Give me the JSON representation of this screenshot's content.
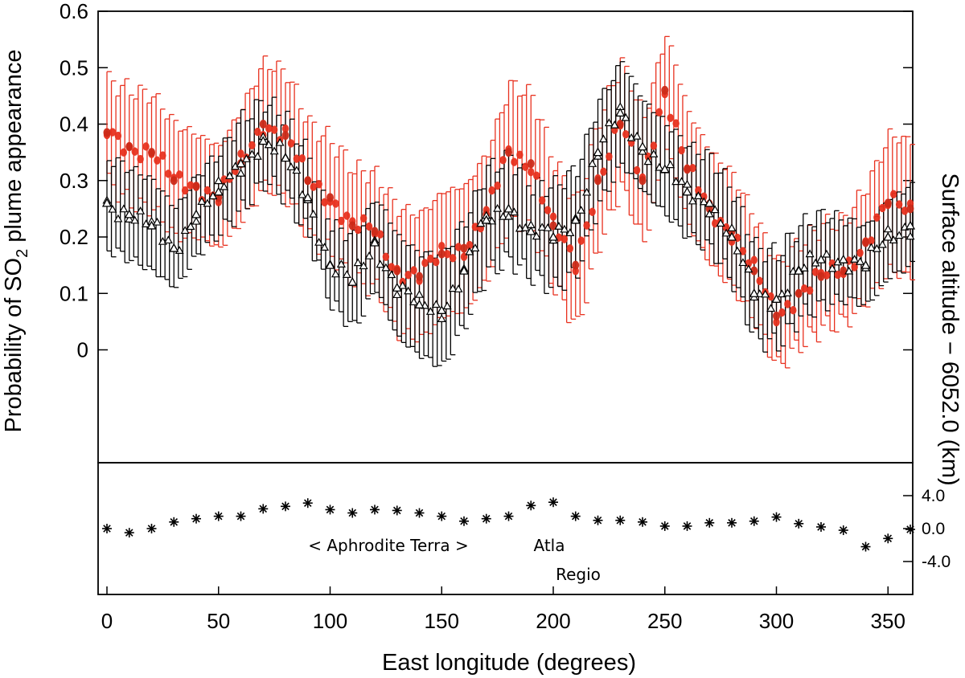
{
  "chart_data": [
    {
      "type": "scatter",
      "panel": "top",
      "ylabel_parts": [
        "Probability of SO",
        "2",
        " plume appearance"
      ],
      "ylim": [
        -0.2,
        0.6
      ],
      "yticks": [
        0,
        0.1,
        0.2,
        0.3,
        0.4,
        0.5,
        0.6
      ],
      "ytick_labels": [
        "0",
        "0.1",
        "0.2",
        "0.3",
        "0.4",
        "0.5",
        "0.6"
      ],
      "xlim": [
        0,
        360
      ],
      "series": [
        {
          "name": "Red (filled circles)",
          "marker": "filled-circle",
          "color": "#e8311f",
          "x": [
            0,
            10,
            20,
            30,
            40,
            50,
            60,
            70,
            80,
            90,
            100,
            110,
            120,
            130,
            140,
            150,
            160,
            170,
            180,
            190,
            200,
            210,
            220,
            230,
            240,
            250,
            260,
            270,
            280,
            290,
            300,
            310,
            320,
            330,
            340,
            350,
            360
          ],
          "y": [
            0.385,
            0.36,
            0.35,
            0.3,
            0.29,
            0.27,
            0.33,
            0.4,
            0.38,
            0.3,
            0.27,
            0.22,
            0.21,
            0.14,
            0.13,
            0.17,
            0.18,
            0.24,
            0.35,
            0.33,
            0.22,
            0.15,
            0.3,
            0.4,
            0.3,
            0.46,
            0.32,
            0.25,
            0.21,
            0.14,
            0.06,
            0.1,
            0.13,
            0.14,
            0.19,
            0.26,
            0.25
          ],
          "err": [
            0.09,
            0.1,
            0.1,
            0.1,
            0.09,
            0.09,
            0.1,
            0.11,
            0.11,
            0.1,
            0.1,
            0.1,
            0.1,
            0.11,
            0.11,
            0.11,
            0.11,
            0.11,
            0.12,
            0.12,
            0.11,
            0.11,
            0.11,
            0.11,
            0.11,
            0.1,
            0.1,
            0.1,
            0.1,
            0.09,
            0.09,
            0.09,
            0.09,
            0.09,
            0.1,
            0.12,
            0.12
          ]
        },
        {
          "name": "Black (open triangles)",
          "marker": "open-triangle",
          "color": "#000000",
          "x": [
            0,
            10,
            20,
            30,
            40,
            50,
            60,
            70,
            80,
            90,
            100,
            110,
            120,
            130,
            140,
            150,
            160,
            170,
            180,
            190,
            200,
            210,
            220,
            230,
            240,
            250,
            260,
            270,
            280,
            290,
            300,
            310,
            320,
            330,
            340,
            350,
            360
          ],
          "y": [
            0.26,
            0.24,
            0.22,
            0.18,
            0.24,
            0.28,
            0.33,
            0.37,
            0.34,
            0.27,
            0.15,
            0.12,
            0.19,
            0.11,
            0.08,
            0.07,
            0.14,
            0.23,
            0.25,
            0.21,
            0.2,
            0.23,
            0.35,
            0.42,
            0.36,
            0.32,
            0.28,
            0.26,
            0.2,
            0.1,
            0.09,
            0.14,
            0.16,
            0.16,
            0.15,
            0.2,
            0.22
          ],
          "err": [
            0.08,
            0.08,
            0.08,
            0.07,
            0.07,
            0.07,
            0.08,
            0.07,
            0.07,
            0.07,
            0.07,
            0.08,
            0.08,
            0.09,
            0.09,
            0.1,
            0.09,
            0.09,
            0.09,
            0.08,
            0.09,
            0.09,
            0.09,
            0.09,
            0.08,
            0.08,
            0.08,
            0.08,
            0.08,
            0.08,
            0.08,
            0.08,
            0.08,
            0.07,
            0.07,
            0.07,
            0.07
          ]
        }
      ]
    },
    {
      "type": "scatter",
      "panel": "bottom",
      "marker": "asterisk",
      "ylabel": "Surface altitude − 6052.0 (km)",
      "xlabel": "East longitude (degrees)",
      "xlim": [
        0,
        360
      ],
      "xticks": [
        0,
        50,
        100,
        150,
        200,
        250,
        300,
        350
      ],
      "xtick_labels": [
        "0",
        "50",
        "100",
        "150",
        "200",
        "250",
        "300",
        "350"
      ],
      "ylim": [
        -8,
        8
      ],
      "yticks": [
        4,
        0,
        -4
      ],
      "ytick_labels": [
        "4.0",
        "0.0",
        "-4.0"
      ],
      "x": [
        0,
        10,
        20,
        30,
        40,
        50,
        60,
        70,
        80,
        90,
        100,
        110,
        120,
        130,
        140,
        150,
        160,
        170,
        180,
        190,
        200,
        210,
        220,
        230,
        240,
        250,
        260,
        270,
        280,
        290,
        300,
        310,
        320,
        330,
        340,
        350,
        360
      ],
      "y": [
        0.0,
        -0.5,
        0.0,
        0.8,
        1.2,
        1.5,
        1.5,
        2.4,
        2.7,
        3.1,
        2.3,
        1.9,
        2.3,
        2.2,
        1.9,
        1.5,
        0.9,
        1.2,
        1.5,
        2.8,
        3.2,
        1.5,
        1.0,
        1.0,
        0.8,
        0.3,
        0.3,
        0.7,
        0.7,
        0.9,
        1.4,
        0.6,
        0.2,
        -0.2,
        -2.2,
        -1.2,
        -0.1
      ],
      "annotations": [
        "< Aphrodite Terra >",
        "Atla",
        "Regio"
      ]
    }
  ]
}
